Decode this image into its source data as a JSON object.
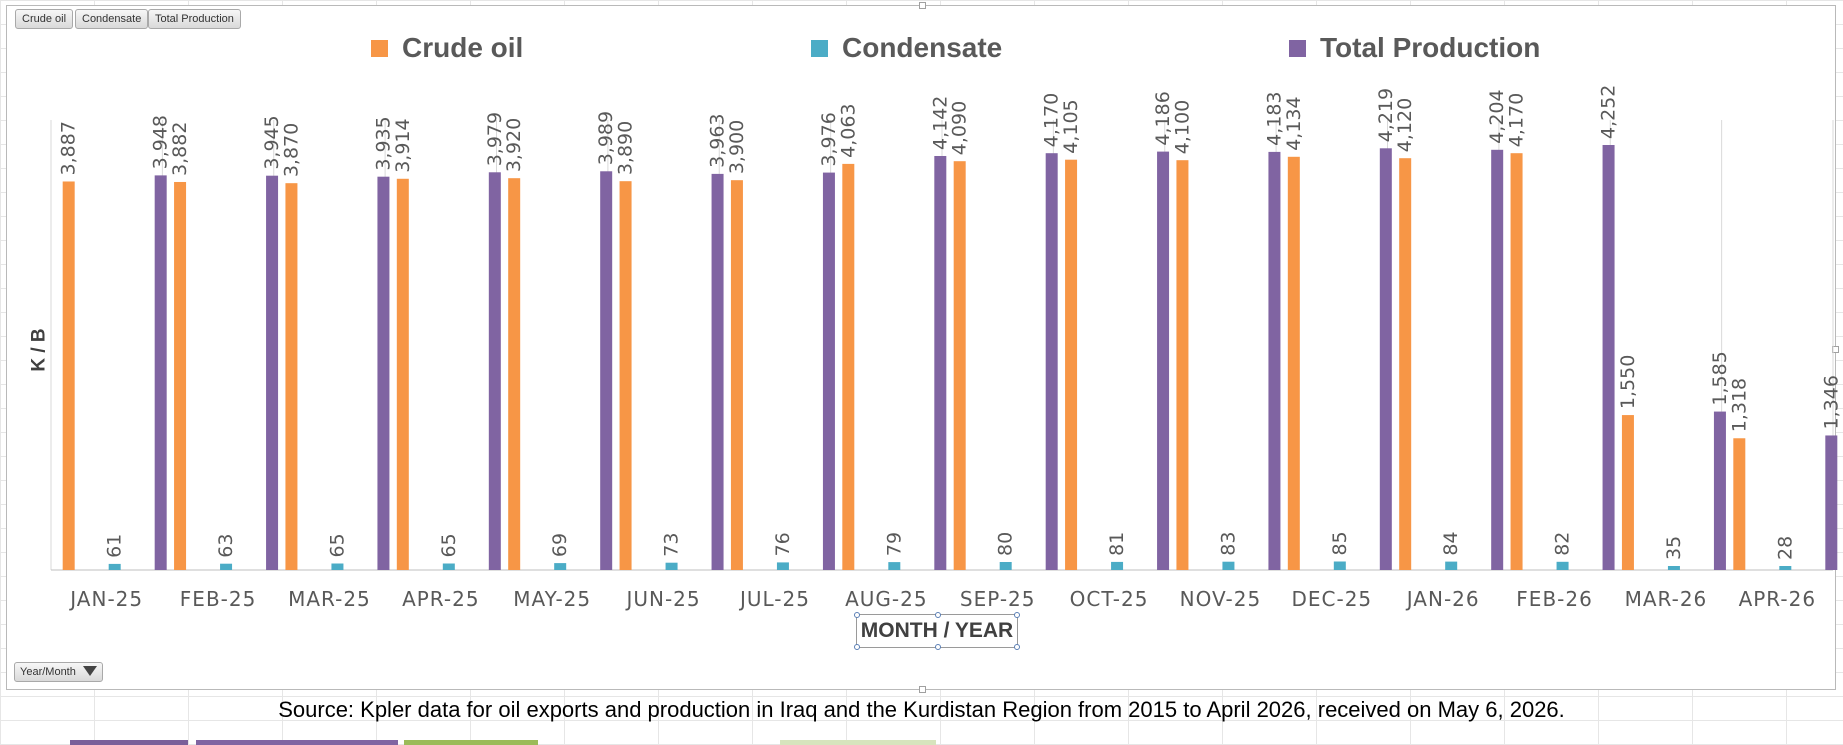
{
  "field_buttons": {
    "crude": "Crude oil",
    "condensate": "Condensate",
    "total": "Total Production"
  },
  "filter_button": {
    "label": "Year/Month",
    "icon": "filter-icon"
  },
  "source": "Source: Kpler data for oil exports and production in Iraq and the Kurdistan Region from 2015 to April 2026, received on May 6, 2026.",
  "colors": {
    "crude": "#f79646",
    "condensate": "#4bacc6",
    "total": "#8064a2"
  },
  "chart_data": {
    "type": "bar",
    "title": "",
    "xlabel": "MONTH / YEAR",
    "ylabel": "K / B",
    "ylim": [
      0,
      4400
    ],
    "grid": "vertical category separators",
    "legend_position": "top",
    "categories": [
      "JAN-25",
      "FEB-25",
      "MAR-25",
      "APR-25",
      "MAY-25",
      "JUN-25",
      "JUL-25",
      "AUG-25",
      "SEP-25",
      "OCT-25",
      "NOV-25",
      "DEC-25",
      "JAN-26",
      "FEB-26",
      "MAR-26",
      "APR-26"
    ],
    "series": [
      {
        "name": "Crude oil",
        "color": "#f79646",
        "values": [
          3887,
          3882,
          3870,
          3914,
          3920,
          3890,
          3900,
          4063,
          4090,
          4105,
          4100,
          4134,
          4120,
          4170,
          1550,
          1318
        ]
      },
      {
        "name": "Condensate",
        "color": "#4bacc6",
        "values": [
          61,
          63,
          65,
          65,
          69,
          73,
          76,
          79,
          80,
          81,
          83,
          85,
          84,
          82,
          35,
          28
        ]
      },
      {
        "name": "Total Production",
        "color": "#8064a2",
        "values": [
          3948,
          3945,
          3935,
          3979,
          3989,
          3963,
          3976,
          4142,
          4170,
          4186,
          4183,
          4219,
          4204,
          4252,
          1585,
          1346
        ]
      }
    ]
  }
}
